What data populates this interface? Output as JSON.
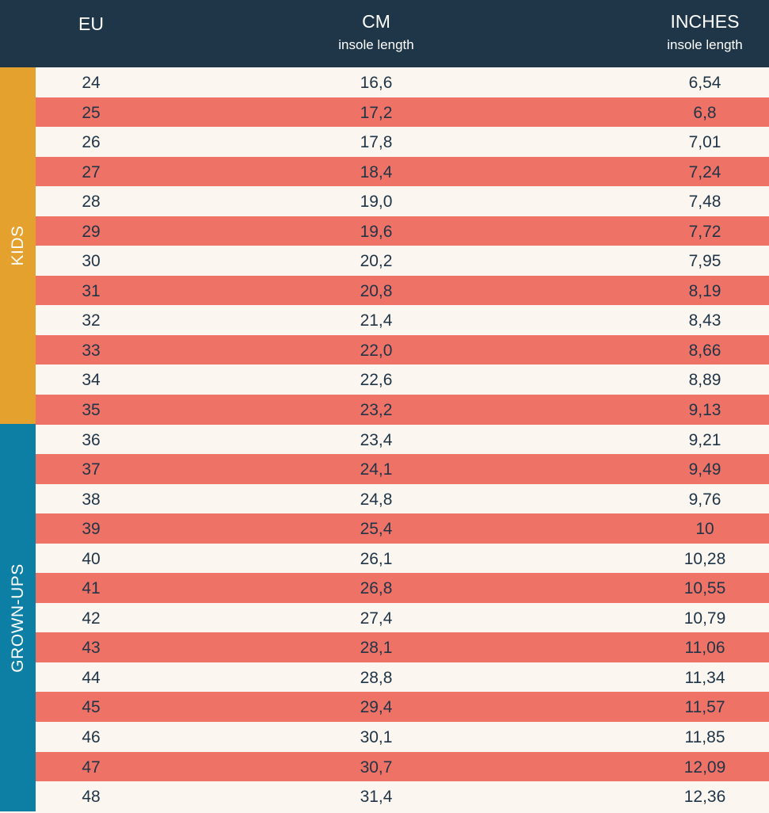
{
  "header": {
    "eu": "EU",
    "cm": "CM",
    "cm_sub": "insole length",
    "inches": "INCHES",
    "inches_sub": "insole length"
  },
  "groups": {
    "kids": "KIDS",
    "grown_ups": "GROWN-UPS"
  },
  "rows": [
    {
      "eu": "24",
      "cm": "16,6",
      "in": "6,54"
    },
    {
      "eu": "25",
      "cm": "17,2",
      "in": "6,8"
    },
    {
      "eu": "26",
      "cm": "17,8",
      "in": "7,01"
    },
    {
      "eu": "27",
      "cm": "18,4",
      "in": "7,24"
    },
    {
      "eu": "28",
      "cm": "19,0",
      "in": "7,48"
    },
    {
      "eu": "29",
      "cm": "19,6",
      "in": "7,72"
    },
    {
      "eu": "30",
      "cm": "20,2",
      "in": "7,95"
    },
    {
      "eu": "31",
      "cm": "20,8",
      "in": "8,19"
    },
    {
      "eu": "32",
      "cm": "21,4",
      "in": "8,43"
    },
    {
      "eu": "33",
      "cm": "22,0",
      "in": "8,66"
    },
    {
      "eu": "34",
      "cm": "22,6",
      "in": "8,89"
    },
    {
      "eu": "35",
      "cm": "23,2",
      "in": "9,13"
    },
    {
      "eu": "36",
      "cm": "23,4",
      "in": "9,21"
    },
    {
      "eu": "37",
      "cm": "24,1",
      "in": "9,49"
    },
    {
      "eu": "38",
      "cm": "24,8",
      "in": "9,76"
    },
    {
      "eu": "39",
      "cm": "25,4",
      "in": "10"
    },
    {
      "eu": "40",
      "cm": "26,1",
      "in": "10,28"
    },
    {
      "eu": "41",
      "cm": "26,8",
      "in": "10,55"
    },
    {
      "eu": "42",
      "cm": "27,4",
      "in": "10,79"
    },
    {
      "eu": "43",
      "cm": "28,1",
      "in": "11,06"
    },
    {
      "eu": "44",
      "cm": "28,8",
      "in": "11,34"
    },
    {
      "eu": "45",
      "cm": "29,4",
      "in": "11,57"
    },
    {
      "eu": "46",
      "cm": "30,1",
      "in": "11,85"
    },
    {
      "eu": "47",
      "cm": "30,7",
      "in": "12,09"
    },
    {
      "eu": "48",
      "cm": "31,4",
      "in": "12,36"
    }
  ],
  "colors": {
    "header_bg": "#1f3649",
    "kids_band": "#e5a12d",
    "grown_ups_band": "#0d7fa5",
    "row_light": "#fbf6ef",
    "row_accent": "#ef7266"
  }
}
